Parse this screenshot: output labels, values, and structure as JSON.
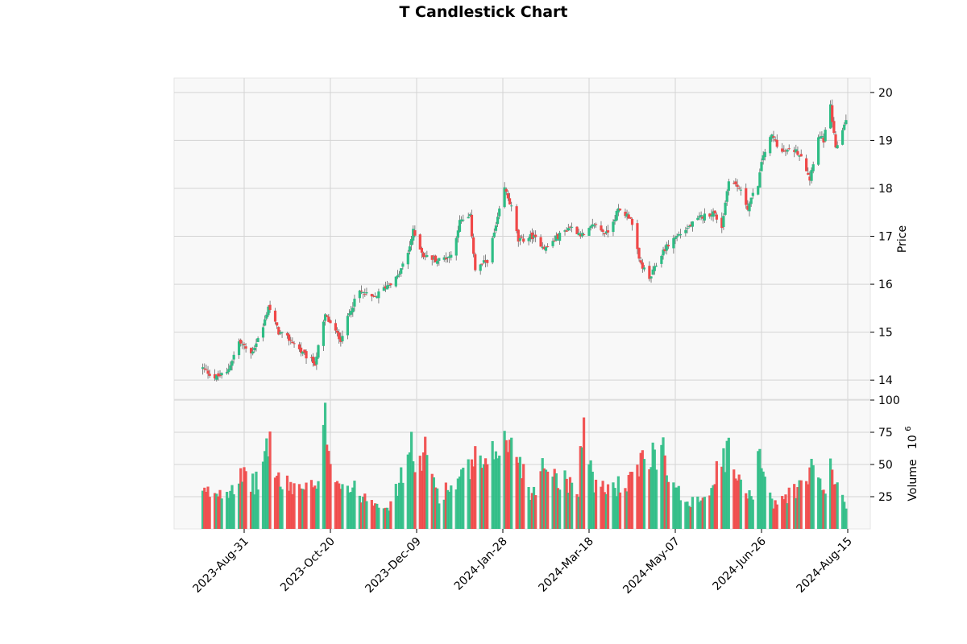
{
  "chart_data": {
    "type": "candlestick",
    "title": "T Candlestick Chart",
    "xlabel": "",
    "ylabel": "Price",
    "volume_label": "Volume",
    "volume_multiplier_label": "10",
    "volume_multiplier_exp": "6",
    "date_range": [
      "2023-08-07",
      "2024-08-14"
    ],
    "xticks": [
      "2023-Aug-31",
      "2023-Oct-20",
      "2023-Dec-09",
      "2024-Jan-28",
      "2024-Mar-18",
      "2024-May-07",
      "2024-Jun-26",
      "2024-Aug-15"
    ],
    "price_ylim": [
      13.6,
      20.3
    ],
    "price_yticks": [
      14,
      15,
      16,
      17,
      18,
      19,
      20
    ],
    "volume_ylim": [
      0,
      100
    ],
    "volume_yticks": [
      25,
      50,
      75,
      100
    ],
    "grid": true,
    "up_color": "#2ebd85",
    "down_color": "#f04848",
    "panel_background": "#f8f8f8",
    "grid_color": "#d4d4d4",
    "close_anchors": [
      [
        "2023-08-07",
        14.25
      ],
      [
        "2023-08-14",
        14.05
      ],
      [
        "2023-08-21",
        14.15
      ],
      [
        "2023-08-28",
        14.8
      ],
      [
        "2023-09-04",
        14.55
      ],
      [
        "2023-09-11",
        15.1
      ],
      [
        "2023-09-14",
        15.55
      ],
      [
        "2023-09-20",
        15.0
      ],
      [
        "2023-09-28",
        14.8
      ],
      [
        "2023-10-04",
        14.55
      ],
      [
        "2023-10-11",
        14.35
      ],
      [
        "2023-10-17",
        15.35
      ],
      [
        "2023-10-23",
        15.0
      ],
      [
        "2023-10-26",
        14.85
      ],
      [
        "2023-11-01",
        15.5
      ],
      [
        "2023-11-06",
        15.85
      ],
      [
        "2023-11-14",
        15.7
      ],
      [
        "2023-11-21",
        15.95
      ],
      [
        "2023-11-28",
        16.15
      ],
      [
        "2023-12-04",
        16.65
      ],
      [
        "2023-12-07",
        17.1
      ],
      [
        "2023-12-13",
        16.6
      ],
      [
        "2023-12-21",
        16.5
      ],
      [
        "2023-12-29",
        16.6
      ],
      [
        "2024-01-03",
        17.3
      ],
      [
        "2024-01-09",
        17.4
      ],
      [
        "2024-01-12",
        16.3
      ],
      [
        "2024-01-19",
        16.5
      ],
      [
        "2024-01-24",
        17.2
      ],
      [
        "2024-01-29",
        18.0
      ],
      [
        "2024-02-02",
        17.6
      ],
      [
        "2024-02-06",
        16.9
      ],
      [
        "2024-02-14",
        17.0
      ],
      [
        "2024-02-22",
        16.75
      ],
      [
        "2024-02-29",
        17.0
      ],
      [
        "2024-03-07",
        17.2
      ],
      [
        "2024-03-15",
        17.0
      ],
      [
        "2024-03-21",
        17.25
      ],
      [
        "2024-03-28",
        17.05
      ],
      [
        "2024-04-04",
        17.55
      ],
      [
        "2024-04-11",
        17.4
      ],
      [
        "2024-04-16",
        16.5
      ],
      [
        "2024-04-22",
        16.1
      ],
      [
        "2024-04-30",
        16.7
      ],
      [
        "2024-05-06",
        16.95
      ],
      [
        "2024-05-15",
        17.2
      ],
      [
        "2024-05-22",
        17.4
      ],
      [
        "2024-05-29",
        17.5
      ],
      [
        "2024-06-03",
        17.2
      ],
      [
        "2024-06-07",
        18.2
      ],
      [
        "2024-06-13",
        18.0
      ],
      [
        "2024-06-18",
        17.6
      ],
      [
        "2024-06-24",
        18.1
      ],
      [
        "2024-06-27",
        18.7
      ],
      [
        "2024-07-02",
        19.1
      ],
      [
        "2024-07-08",
        18.75
      ],
      [
        "2024-07-15",
        18.8
      ],
      [
        "2024-07-19",
        18.7
      ],
      [
        "2024-07-24",
        18.2
      ],
      [
        "2024-07-29",
        19.1
      ],
      [
        "2024-08-01",
        19.0
      ],
      [
        "2024-08-05",
        19.7
      ],
      [
        "2024-08-08",
        18.8
      ],
      [
        "2024-08-14",
        19.45
      ]
    ],
    "volume_anchors": [
      [
        "2023-08-07",
        31
      ],
      [
        "2023-08-21",
        35
      ],
      [
        "2023-08-28",
        45
      ],
      [
        "2023-09-08",
        40
      ],
      [
        "2023-09-14",
        80
      ],
      [
        "2023-09-21",
        38
      ],
      [
        "2023-10-02",
        38
      ],
      [
        "2023-10-13",
        35
      ],
      [
        "2023-10-17",
        96
      ],
      [
        "2023-10-20",
        66
      ],
      [
        "2023-10-25",
        42
      ],
      [
        "2023-11-08",
        30
      ],
      [
        "2023-11-24",
        20
      ],
      [
        "2023-12-01",
        50
      ],
      [
        "2023-12-05",
        72
      ],
      [
        "2023-12-12",
        55
      ],
      [
        "2023-12-14",
        67
      ],
      [
        "2023-12-22",
        30
      ],
      [
        "2024-01-05",
        45
      ],
      [
        "2024-01-12",
        60
      ],
      [
        "2024-01-19",
        50
      ],
      [
        "2024-01-26",
        80
      ],
      [
        "2024-02-01",
        72
      ],
      [
        "2024-02-06",
        68
      ],
      [
        "2024-02-13",
        30
      ],
      [
        "2024-02-22",
        60
      ],
      [
        "2024-03-01",
        45
      ],
      [
        "2024-03-12",
        38
      ],
      [
        "2024-03-14",
        93
      ],
      [
        "2024-03-22",
        35
      ],
      [
        "2024-04-10",
        40
      ],
      [
        "2024-04-18",
        57
      ],
      [
        "2024-04-30",
        75
      ],
      [
        "2024-05-06",
        35
      ],
      [
        "2024-05-14",
        25
      ],
      [
        "2024-05-24",
        30
      ],
      [
        "2024-06-07",
        68
      ],
      [
        "2024-06-14",
        36
      ],
      [
        "2024-06-21",
        33
      ],
      [
        "2024-06-24",
        72
      ],
      [
        "2024-06-28",
        52
      ],
      [
        "2024-07-03",
        20
      ],
      [
        "2024-07-15",
        35
      ],
      [
        "2024-07-23",
        40
      ],
      [
        "2024-07-26",
        70
      ],
      [
        "2024-07-31",
        30
      ],
      [
        "2024-08-05",
        50
      ],
      [
        "2024-08-14",
        22
      ]
    ]
  }
}
